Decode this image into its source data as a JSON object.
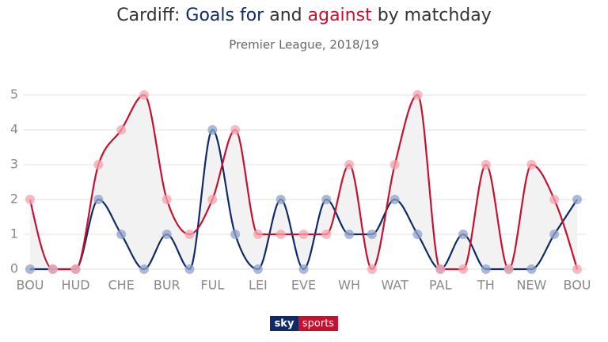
{
  "chart_data": {
    "type": "line",
    "title_parts": [
      "Cardiff:",
      "and",
      "by matchday"
    ],
    "subtitle": "Premier League, 2018/19",
    "source_logo": {
      "brand": "sky",
      "product": "sports"
    },
    "categories": [
      "BOU",
      null,
      "HUD",
      null,
      "CHE",
      null,
      "BUR",
      null,
      "FUL",
      null,
      "LEI",
      null,
      "EVE",
      null,
      "WH",
      null,
      "WAT",
      null,
      "PAL",
      null,
      "TH",
      null,
      "NEW",
      null,
      "BOU"
    ],
    "series": [
      {
        "name": "Goals for",
        "color": "#0f2a66",
        "point_color": "#8ea2cb",
        "values": [
          0,
          0,
          0,
          2,
          1,
          0,
          1,
          0,
          4,
          1,
          0,
          2,
          0,
          2,
          1,
          1,
          2,
          1,
          0,
          1,
          0,
          0,
          0,
          1,
          2
        ]
      },
      {
        "name": "against",
        "color": "#c8102e",
        "point_color": "#f5a3ad",
        "values": [
          2,
          0,
          0,
          3,
          4,
          5,
          2,
          1,
          2,
          4,
          1,
          1,
          1,
          1,
          3,
          0,
          3,
          5,
          0,
          0,
          3,
          0,
          3,
          2,
          0
        ]
      }
    ],
    "ylim": [
      0,
      5
    ],
    "yticks": [
      0,
      1,
      2,
      3,
      4,
      5
    ],
    "grid": true,
    "fill_between": true
  }
}
